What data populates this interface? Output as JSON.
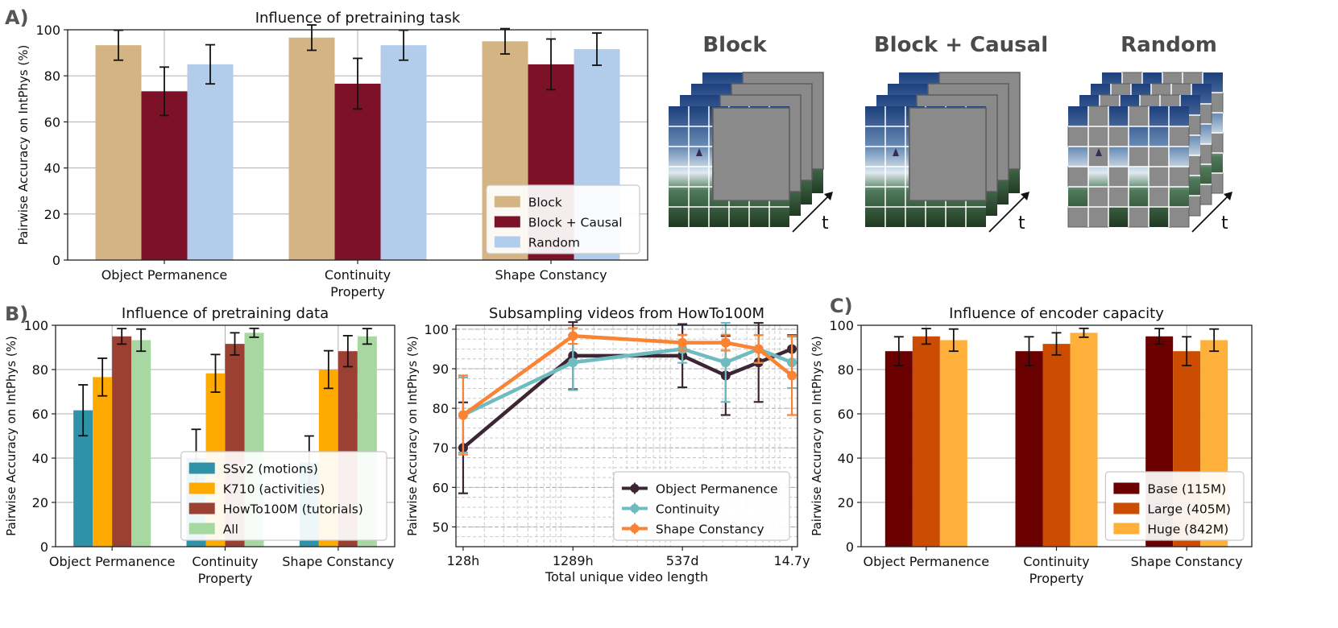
{
  "panel_labels": {
    "a": "A)",
    "b": "B)",
    "c": "C)"
  },
  "mask_illustrations": {
    "time_label": "t",
    "items": [
      {
        "title": "Block"
      },
      {
        "title": "Block + Causal"
      },
      {
        "title": "Random"
      }
    ]
  },
  "chart_data": [
    {
      "id": "chartA",
      "type": "bar",
      "title": "Influence of pretraining task",
      "xlabel": "",
      "ylabel": "Pairwise Accuracy on IntPhys (%)",
      "ylim": [
        0,
        100
      ],
      "yticks": [
        0,
        20,
        40,
        60,
        80,
        100
      ],
      "grid": true,
      "legend_position": "bottom-right",
      "categories": [
        "Object Permanence",
        "Continuity\nProperty",
        "Shape Constancy"
      ],
      "series": [
        {
          "name": "Block",
          "color": "#d4b483",
          "values": [
            93.3,
            96.6,
            95.0
          ],
          "errors": [
            6.5,
            5.5,
            5.5
          ]
        },
        {
          "name": "Block + Causal",
          "color": "#7c1128",
          "values": [
            73.3,
            76.6,
            85.0
          ],
          "errors": [
            10.5,
            11.0,
            11.0
          ]
        },
        {
          "name": "Random",
          "color": "#b2cdec",
          "values": [
            85.0,
            93.3,
            91.6
          ],
          "errors": [
            8.5,
            6.5,
            7.0
          ]
        }
      ]
    },
    {
      "id": "chartB1",
      "type": "bar",
      "title": "Influence of pretraining data",
      "xlabel": "",
      "ylabel": "Pairwise Accuracy on IntPhys (%)",
      "ylim": [
        0,
        100
      ],
      "yticks": [
        0,
        20,
        40,
        60,
        80,
        100
      ],
      "grid": true,
      "legend_position": "bottom-right",
      "categories": [
        "Object Permanence",
        "Continuity\nProperty",
        "Shape Constancy"
      ],
      "series": [
        {
          "name": "SSv2 (motions)",
          "color": "#2e93a8",
          "values": [
            61.6,
            40.0,
            38.0
          ],
          "errors": [
            11.5,
            13.0,
            12.0
          ]
        },
        {
          "name": "K710 (activities)",
          "color": "#ffaa00",
          "values": [
            76.6,
            78.3,
            80.0
          ],
          "errors": [
            8.5,
            8.5,
            8.5
          ]
        },
        {
          "name": "HowTo100M (tutorials)",
          "color": "#9c4033",
          "values": [
            95.0,
            91.6,
            88.3
          ],
          "errors": [
            3.5,
            5.0,
            7.0
          ]
        },
        {
          "name": "All",
          "color": "#a8d8a2",
          "values": [
            93.3,
            96.6,
            95.0
          ],
          "errors": [
            5.0,
            2.0,
            3.5
          ]
        }
      ]
    },
    {
      "id": "chartB2",
      "type": "line",
      "title": "Subsampling videos from HowTo100M",
      "xlabel": "Total unique video length",
      "ylabel": "Pairwise Accuracy on IntPhys (%)",
      "x_scale": "log",
      "xlim": [
        110,
        145000
      ],
      "ylim": [
        45,
        101
      ],
      "yticks": [
        50,
        60,
        70,
        80,
        90,
        100
      ],
      "xticks": [
        {
          "value": 128,
          "label": "128h"
        },
        {
          "value": 1289,
          "label": "1289h"
        },
        {
          "value": 12888,
          "label": "537d"
        },
        {
          "value": 128880,
          "label": "14.7y"
        }
      ],
      "grid": true,
      "legend_position": "bottom-right",
      "x": [
        128,
        1289,
        12888,
        32000,
        64000,
        128880
      ],
      "series": [
        {
          "name": "Object Permanence",
          "color": "#3d2633",
          "values": [
            70.0,
            93.3,
            93.3,
            88.3,
            91.6,
            95.0
          ],
          "errors": [
            11.5,
            8.5,
            8.0,
            10.0,
            10.0,
            3.5
          ]
        },
        {
          "name": "Continuity",
          "color": "#6fbcc0",
          "values": [
            78.3,
            91.6,
            95.0,
            91.6,
            95.0,
            91.6
          ],
          "errors": [
            9.5,
            7.0,
            3.5,
            10.0,
            3.5,
            6.5
          ]
        },
        {
          "name": "Shape Constancy",
          "color": "#fa8334",
          "values": [
            78.3,
            98.3,
            96.6,
            96.6,
            95.0,
            88.3
          ],
          "errors": [
            10.0,
            2.0,
            2.0,
            2.0,
            3.5,
            10.0
          ]
        }
      ]
    },
    {
      "id": "chartC",
      "type": "bar",
      "title": "Influence of encoder capacity",
      "xlabel": "",
      "ylabel": "Pairwise Accuracy on IntPhys (%)",
      "ylim": [
        0,
        100
      ],
      "yticks": [
        0,
        20,
        40,
        60,
        80,
        100
      ],
      "grid": true,
      "legend_position": "bottom-right",
      "categories": [
        "Object Permanence",
        "Continuity\nProperty",
        "Shape Constancy"
      ],
      "series": [
        {
          "name": "Base (115M)",
          "color": "#6b0000",
          "values": [
            88.3,
            88.3,
            95.0
          ],
          "errors": [
            6.5,
            6.5,
            3.5
          ]
        },
        {
          "name": "Large (405M)",
          "color": "#cc4c02",
          "values": [
            95.0,
            91.6,
            88.3
          ],
          "errors": [
            3.5,
            5.0,
            6.5
          ]
        },
        {
          "name": "Huge (842M)",
          "color": "#feb03b",
          "values": [
            93.3,
            96.6,
            93.3
          ],
          "errors": [
            5.0,
            2.0,
            5.0
          ]
        }
      ]
    }
  ]
}
